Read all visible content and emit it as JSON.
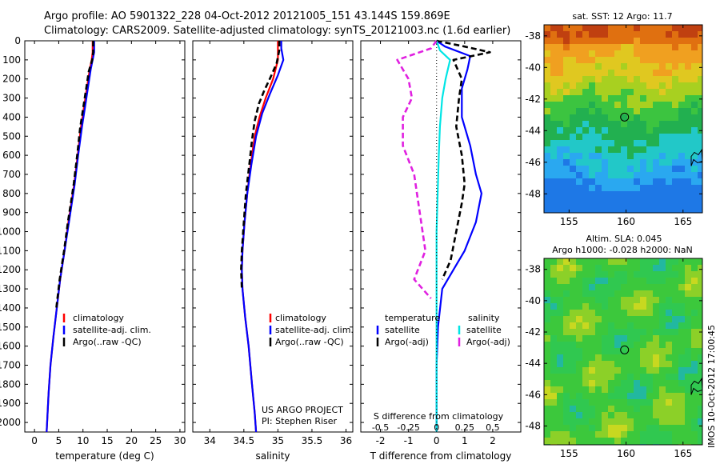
{
  "header": {
    "line1": "Argo profile: AO 5901322_228 04-Oct-2012 20121005_151 43.144S 159.869E",
    "line2": "Climatology: CARS2009. Satellite-adjusted climatology: synTS_20121003.nc (1.6d earlier)"
  },
  "side_label": "IMOS 10-Oct-2012 17:00:45",
  "colors": {
    "red": "#ff0000",
    "blue": "#0000ff",
    "black": "#000000",
    "cyan": "#00e5e5",
    "magenta": "#e020e0"
  },
  "chart_data": [
    {
      "type": "line",
      "id": "temperature",
      "xlabel": "temperature (deg C)",
      "ylim": [
        2050,
        0
      ],
      "xlim": [
        -2,
        31
      ],
      "xticks": [
        0,
        5,
        10,
        15,
        20,
        25,
        30
      ],
      "yticks": [
        0,
        100,
        200,
        300,
        400,
        500,
        600,
        700,
        800,
        900,
        1000,
        1100,
        1200,
        1300,
        1400,
        1500,
        1600,
        1700,
        1800,
        1900,
        2000
      ],
      "legend": [
        "climatology",
        "satellite-adj. clim.",
        "Argo(..raw -QC)"
      ],
      "series": [
        {
          "name": "climatology",
          "color": "red",
          "style": "solid",
          "points": [
            [
              12.0,
              0
            ],
            [
              12.0,
              60
            ],
            [
              11.8,
              100
            ],
            [
              11.4,
              150
            ],
            [
              10.8,
              250
            ],
            [
              10.2,
              350
            ],
            [
              9.6,
              450
            ],
            [
              8.9,
              600
            ],
            [
              8.2,
              750
            ],
            [
              7.6,
              850
            ],
            [
              7.0,
              950
            ],
            [
              6.2,
              1100
            ],
            [
              5.3,
              1250
            ],
            [
              4.6,
              1400
            ],
            [
              3.9,
              1550
            ],
            [
              3.3,
              1700
            ],
            [
              2.9,
              1850
            ],
            [
              2.6,
              2000
            ],
            [
              2.5,
              2050
            ]
          ]
        },
        {
          "name": "satellite-adj. clim.",
          "color": "blue",
          "style": "solid",
          "points": [
            [
              12.3,
              0
            ],
            [
              12.3,
              60
            ],
            [
              12.0,
              100
            ],
            [
              11.6,
              150
            ],
            [
              11.0,
              250
            ],
            [
              10.4,
              350
            ],
            [
              9.8,
              450
            ],
            [
              9.0,
              600
            ],
            [
              8.3,
              750
            ],
            [
              7.7,
              850
            ],
            [
              7.1,
              950
            ],
            [
              6.2,
              1100
            ],
            [
              5.3,
              1250
            ],
            [
              4.6,
              1400
            ],
            [
              3.9,
              1550
            ],
            [
              3.3,
              1700
            ],
            [
              2.9,
              1850
            ],
            [
              2.6,
              2000
            ],
            [
              2.5,
              2050
            ]
          ]
        },
        {
          "name": "Argo(..raw -QC)",
          "color": "black",
          "style": "dashed",
          "points": [
            [
              12.1,
              0
            ],
            [
              12.1,
              60
            ],
            [
              11.9,
              100
            ],
            [
              11.2,
              160
            ],
            [
              10.6,
              260
            ],
            [
              10.0,
              360
            ],
            [
              9.4,
              460
            ],
            [
              8.8,
              600
            ],
            [
              8.1,
              750
            ],
            [
              7.5,
              850
            ],
            [
              6.9,
              950
            ],
            [
              6.1,
              1100
            ],
            [
              5.2,
              1250
            ],
            [
              4.5,
              1400
            ]
          ]
        }
      ]
    },
    {
      "type": "line",
      "id": "salinity",
      "xlabel": "salinity",
      "ylim": [
        2050,
        0
      ],
      "xlim": [
        33.75,
        36.1
      ],
      "xticks": [
        34,
        34.5,
        35,
        35.5,
        36
      ],
      "legend": [
        "climatology",
        "satellite-adj. clim.",
        "Argo(..raw -QC)"
      ],
      "annotation": [
        "US ARGO PROJECT",
        "PI: Stephen Riser"
      ],
      "series": [
        {
          "name": "climatology",
          "color": "red",
          "style": "solid",
          "points": [
            [
              35.0,
              0
            ],
            [
              35.0,
              50
            ],
            [
              35.0,
              100
            ],
            [
              34.93,
              200
            ],
            [
              34.82,
              300
            ],
            [
              34.73,
              400
            ],
            [
              34.66,
              500
            ],
            [
              34.6,
              650
            ],
            [
              34.55,
              800
            ],
            [
              34.51,
              950
            ],
            [
              34.48,
              1100
            ],
            [
              34.47,
              1200
            ],
            [
              34.48,
              1300
            ],
            [
              34.52,
              1450
            ],
            [
              34.57,
              1600
            ],
            [
              34.62,
              1800
            ],
            [
              34.66,
              1950
            ],
            [
              34.68,
              2050
            ]
          ]
        },
        {
          "name": "satellite-adj. clim.",
          "color": "blue",
          "style": "solid",
          "points": [
            [
              35.05,
              0
            ],
            [
              35.05,
              40
            ],
            [
              35.08,
              100
            ],
            [
              35.0,
              180
            ],
            [
              34.88,
              280
            ],
            [
              34.77,
              380
            ],
            [
              34.68,
              500
            ],
            [
              34.61,
              650
            ],
            [
              34.55,
              800
            ],
            [
              34.51,
              950
            ],
            [
              34.48,
              1100
            ],
            [
              34.47,
              1200
            ],
            [
              34.48,
              1300
            ],
            [
              34.52,
              1450
            ],
            [
              34.57,
              1600
            ],
            [
              34.62,
              1800
            ],
            [
              34.66,
              1950
            ],
            [
              34.68,
              2050
            ]
          ]
        },
        {
          "name": "Argo(..raw -QC)",
          "color": "black",
          "style": "dashed",
          "points": [
            [
              35.02,
              0
            ],
            [
              35.02,
              50
            ],
            [
              34.98,
              120
            ],
            [
              34.88,
              200
            ],
            [
              34.8,
              260
            ],
            [
              34.72,
              330
            ],
            [
              34.66,
              420
            ],
            [
              34.62,
              520
            ],
            [
              34.58,
              650
            ],
            [
              34.53,
              800
            ],
            [
              34.5,
              950
            ],
            [
              34.47,
              1100
            ],
            [
              34.46,
              1200
            ],
            [
              34.47,
              1300
            ]
          ]
        }
      ]
    },
    {
      "type": "line",
      "id": "difference",
      "xlabel": "T difference from climatology",
      "xlabel_top": "S difference from climatology",
      "ylim": [
        2050,
        0
      ],
      "xlim": [
        -2.7,
        3.0
      ],
      "xticks_bottom": [
        "-2",
        "-1",
        "0",
        "1",
        "2"
      ],
      "xticks_top": [
        "-0.5",
        "-0.25",
        "0",
        "0.25",
        "0.5"
      ],
      "legend_headers": [
        "temperature",
        "salinity"
      ],
      "legend": [
        "satellite",
        "Argo(-adj)",
        "satellite",
        "Argo(-adj)"
      ],
      "series": [
        {
          "name": "temperature satellite",
          "color": "blue",
          "style": "solid",
          "points": [
            [
              0.0,
              0
            ],
            [
              0.3,
              30
            ],
            [
              1.2,
              80
            ],
            [
              1.1,
              150
            ],
            [
              0.9,
              250
            ],
            [
              0.9,
              400
            ],
            [
              1.2,
              550
            ],
            [
              1.4,
              700
            ],
            [
              1.6,
              800
            ],
            [
              1.4,
              950
            ],
            [
              1.0,
              1100
            ],
            [
              0.6,
              1200
            ],
            [
              0.2,
              1300
            ],
            [
              0.05,
              1500
            ],
            [
              0,
              1700
            ],
            [
              0,
              2050
            ]
          ]
        },
        {
          "name": "temperature Argo(-adj)",
          "color": "black",
          "style": "dashed",
          "points": [
            [
              0.0,
              0
            ],
            [
              1.0,
              30
            ],
            [
              1.9,
              60
            ],
            [
              0.6,
              100
            ],
            [
              0.9,
              200
            ],
            [
              0.8,
              300
            ],
            [
              0.7,
              450
            ],
            [
              0.9,
              600
            ],
            [
              1.0,
              750
            ],
            [
              0.9,
              850
            ],
            [
              0.7,
              1000
            ],
            [
              0.5,
              1150
            ],
            [
              0.2,
              1250
            ]
          ]
        },
        {
          "name": "salinity satellite",
          "color": "cyan",
          "style": "solid",
          "points": [
            [
              0.0,
              0
            ],
            [
              0.03,
              50
            ],
            [
              0.12,
              100
            ],
            [
              0.08,
              200
            ],
            [
              0.05,
              300
            ],
            [
              0.03,
              450
            ],
            [
              0.02,
              600
            ],
            [
              0.01,
              800
            ],
            [
              0,
              1000
            ],
            [
              0,
              1300
            ],
            [
              0,
              2050
            ]
          ]
        },
        {
          "name": "salinity Argo(-adj)",
          "color": "magenta",
          "style": "dashed",
          "points": [
            [
              0.0,
              0
            ],
            [
              -0.05,
              40
            ],
            [
              -0.35,
              100
            ],
            [
              -0.25,
              200
            ],
            [
              -0.22,
              300
            ],
            [
              -0.3,
              400
            ],
            [
              -0.3,
              550
            ],
            [
              -0.2,
              700
            ],
            [
              -0.15,
              900
            ],
            [
              -0.1,
              1100
            ],
            [
              -0.2,
              1250
            ],
            [
              -0.05,
              1350
            ]
          ]
        }
      ]
    },
    {
      "type": "heatmap",
      "id": "sst-map",
      "title": "sat. SST: 12 Argo: 11.7",
      "xlim": [
        152.8,
        166.7
      ],
      "ylim": [
        -49.2,
        -37.3
      ],
      "xticks": [
        155,
        160,
        165
      ],
      "yticks": [
        -38,
        -40,
        -42,
        -44,
        -46,
        -48
      ],
      "marker": [
        159.87,
        -43.14
      ]
    },
    {
      "type": "heatmap",
      "id": "sla-map",
      "title": [
        "Altim. SLA: 0.045",
        "Argo h1000: -0.028 h2000: NaN"
      ],
      "xlim": [
        152.8,
        166.7
      ],
      "ylim": [
        -49.2,
        -37.3
      ],
      "xticks": [
        155,
        160,
        165
      ],
      "yticks": [
        -38,
        -40,
        -42,
        -44,
        -46,
        -48
      ],
      "marker": [
        159.87,
        -43.14
      ]
    }
  ]
}
